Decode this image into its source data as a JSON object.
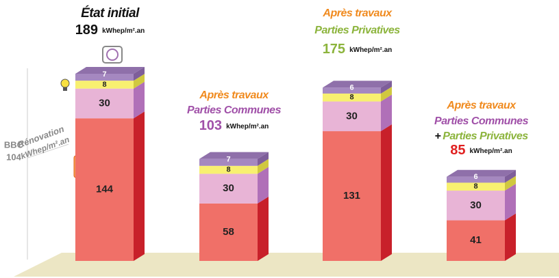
{
  "chart_data": {
    "type": "bar",
    "stacked": true,
    "columns": [
      {
        "heading": [
          [
            {
              "text": "État initial",
              "color": "#111111"
            }
          ]
        ],
        "total": 189,
        "total_color": "#111111",
        "unit": "kWhep/m².an"
      },
      {
        "heading": [
          [
            {
              "text": "Après travaux",
              "color": "#f08a1e"
            }
          ],
          [
            {
              "text": "Parties Communes",
              "color": "#a050a8"
            }
          ]
        ],
        "total": 103,
        "total_color": "#a050a8",
        "unit": "kWhep/m².an"
      },
      {
        "heading": [
          [
            {
              "text": "Après travaux",
              "color": "#f08a1e"
            }
          ],
          [
            {
              "text": "Parties Privatives",
              "color": "#8cb43c"
            }
          ]
        ],
        "total": 175,
        "total_color": "#8cb43c",
        "unit": "kWhep/m².an"
      },
      {
        "heading": [
          [
            {
              "text": "Après travaux",
              "color": "#f08a1e"
            }
          ],
          [
            {
              "text": "Parties Communes",
              "color": "#a050a8"
            }
          ],
          [
            {
              "text": "+",
              "color": "#111111"
            },
            {
              "text": "Parties Privatives",
              "color": "#8cb43c"
            }
          ]
        ],
        "total": 85,
        "total_color": "#e02020",
        "unit": "kWhep/m².an"
      }
    ],
    "series": [
      {
        "color": "#f07068",
        "side": "#c8202a",
        "label_color": "#222222",
        "values": [
          144,
          58,
          131,
          41
        ]
      },
      {
        "color": "#e8b4d6",
        "side": "#b070b8",
        "label_color": "#222222",
        "values": [
          30,
          30,
          30,
          30
        ]
      },
      {
        "color": "#f8f070",
        "side": "#d0c840",
        "label_color": "#222222",
        "values": [
          8,
          8,
          8,
          8
        ]
      },
      {
        "color": "#a588c0",
        "side": "#7e5e9a",
        "top": "#8f70aa",
        "label_color": "#ffffff",
        "values": [
          7,
          7,
          6,
          6
        ]
      }
    ],
    "reference": {
      "name": "BBC",
      "value": 104,
      "label": "Rénovation",
      "unit": "kWhep/m².an"
    }
  }
}
